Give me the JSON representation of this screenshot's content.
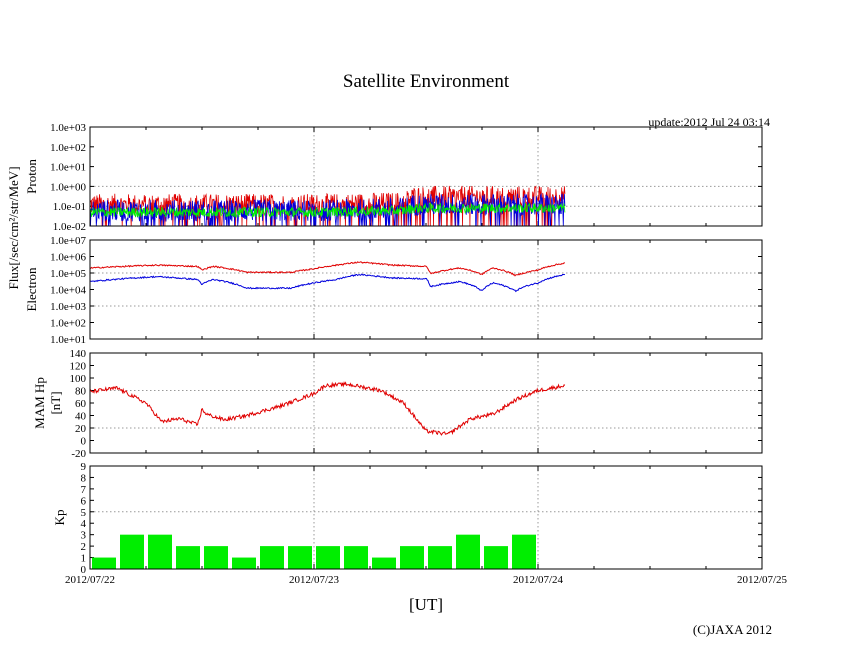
{
  "title": "Satellite Environment",
  "update": "update:2012 Jul 24 03:14",
  "copyright": "(C)JAXA 2012",
  "xlabel": "[UT]",
  "shared_ylabel": "Flux[/sec/cm²/str/MeV]",
  "x_ticks": [
    "2012/07/22",
    "2012/07/23",
    "2012/07/24",
    "2012/07/25"
  ],
  "colors": {
    "red": "#e00000",
    "blue": "#0000dd",
    "green": "#00ee00",
    "grid": "#999999"
  },
  "chart_data": [
    {
      "type": "line",
      "name": "proton",
      "ylabel": "Proton",
      "yscale": "log",
      "ylim": [
        0.01,
        1000
      ],
      "xlim_days": [
        0,
        3
      ],
      "ytick_labels": [
        "1.0e+03",
        "1.0e+02",
        "1.0e+01",
        "1.0e+00",
        "1.0e-01",
        "1.0e-02"
      ],
      "series": [
        {
          "name": "proton-red",
          "color": "red",
          "x": [
            0,
            1.05,
            1.4,
            1.45,
            2.12
          ],
          "y": [
            0.12,
            0.12,
            0.15,
            0.3,
            0.3
          ]
        },
        {
          "name": "proton-blue",
          "color": "blue",
          "x": [
            0,
            1.05,
            1.4,
            1.45,
            2.12
          ],
          "y": [
            0.06,
            0.06,
            0.08,
            0.12,
            0.12
          ]
        },
        {
          "name": "proton-green",
          "color": "green",
          "x": [
            0,
            1.05,
            1.4,
            1.45,
            2.12
          ],
          "y": [
            0.05,
            0.05,
            0.06,
            0.08,
            0.08
          ]
        }
      ]
    },
    {
      "type": "line",
      "name": "electron",
      "ylabel": "Electron",
      "yscale": "log",
      "ylim": [
        10,
        10000000
      ],
      "ytick_labels": [
        "1.0e+07",
        "1.0e+06",
        "1.0e+05",
        "1.0e+04",
        "1.0e+03",
        "1.0e+02",
        "1.0e+01"
      ],
      "series": [
        {
          "name": "electron-red",
          "color": "red",
          "x": [
            0,
            0.3,
            0.48,
            0.5,
            0.55,
            0.7,
            0.9,
            1.0,
            1.1,
            1.2,
            1.35,
            1.5,
            1.52,
            1.65,
            1.75,
            1.8,
            1.9,
            2.0,
            2.12
          ],
          "y": [
            200000,
            300000,
            250000,
            150000,
            250000,
            110000,
            110000,
            180000,
            300000,
            450000,
            300000,
            250000,
            90000,
            200000,
            80000,
            200000,
            70000,
            150000,
            400000
          ]
        },
        {
          "name": "electron-blue",
          "color": "blue",
          "x": [
            0,
            0.3,
            0.48,
            0.5,
            0.55,
            0.7,
            0.9,
            1.0,
            1.1,
            1.2,
            1.35,
            1.5,
            1.52,
            1.65,
            1.75,
            1.8,
            1.9,
            2.0,
            2.12
          ],
          "y": [
            30000,
            60000,
            40000,
            20000,
            40000,
            12000,
            12000,
            25000,
            40000,
            80000,
            50000,
            45000,
            15000,
            30000,
            8000,
            25000,
            8000,
            25000,
            80000
          ]
        }
      ]
    },
    {
      "type": "line",
      "name": "mam-hp",
      "ylabel": "MAM Hp",
      "yunit": "[nT]",
      "ylim": [
        -20,
        140
      ],
      "ytick_labels": [
        "140",
        "120",
        "100",
        "80",
        "60",
        "40",
        "20",
        "0",
        "-20"
      ],
      "series": [
        {
          "name": "hp-red",
          "color": "red",
          "x": [
            0,
            0.12,
            0.25,
            0.32,
            0.4,
            0.48,
            0.5,
            0.52,
            0.6,
            0.7,
            0.85,
            1.0,
            1.05,
            1.15,
            1.3,
            1.4,
            1.5,
            1.6,
            1.7,
            1.8,
            1.9,
            2.0,
            2.12
          ],
          "y": [
            78,
            84,
            60,
            30,
            35,
            25,
            50,
            42,
            33,
            40,
            55,
            75,
            88,
            90,
            80,
            60,
            15,
            10,
            35,
            42,
            65,
            80,
            88
          ]
        }
      ]
    },
    {
      "type": "bar",
      "name": "kp",
      "ylabel": "Kp",
      "ylim": [
        0,
        9
      ],
      "ytick_labels": [
        "9",
        "8",
        "7",
        "6",
        "5",
        "4",
        "3",
        "2",
        "1",
        "0"
      ],
      "bar_interval_hours": 3,
      "values": [
        1,
        3,
        3,
        2,
        2,
        1,
        2,
        2,
        2,
        2,
        1,
        2,
        2,
        3,
        2,
        3
      ],
      "bar_color": "green"
    }
  ]
}
